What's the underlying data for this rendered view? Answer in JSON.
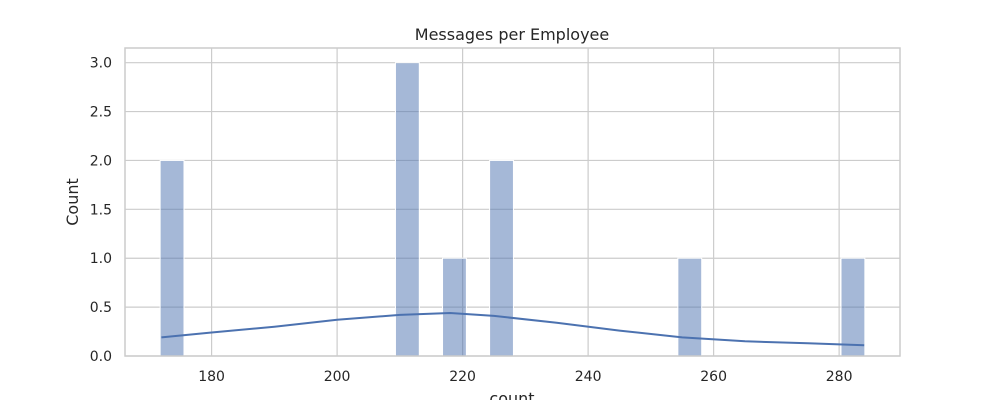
{
  "chart_data": {
    "type": "bar",
    "title": "Messages per Employee",
    "xlabel": "count",
    "ylabel": "Count",
    "xlim": [
      166.2,
      289.7
    ],
    "ylim": [
      0,
      3.15
    ],
    "xticks": [
      180,
      200,
      220,
      240,
      260,
      280
    ],
    "yticks": [
      0.0,
      0.5,
      1.0,
      1.5,
      2.0,
      2.5,
      3.0
    ],
    "ytick_labels": [
      "0.0",
      "0.5",
      "1.0",
      "1.5",
      "2.0",
      "2.5",
      "3.0"
    ],
    "grid": true,
    "bars": [
      {
        "x_start": 171.8,
        "x_end": 175.6,
        "value": 2
      },
      {
        "x_start": 209.3,
        "x_end": 213.1,
        "value": 3
      },
      {
        "x_start": 216.8,
        "x_end": 220.6,
        "value": 1
      },
      {
        "x_start": 224.3,
        "x_end": 228.1,
        "value": 2
      },
      {
        "x_start": 254.3,
        "x_end": 258.1,
        "value": 1
      },
      {
        "x_start": 280.3,
        "x_end": 284.1,
        "value": 1
      }
    ],
    "kde": {
      "x": [
        172,
        180,
        190,
        200,
        210,
        218,
        225,
        235,
        245,
        255,
        265,
        275,
        284
      ],
      "y": [
        0.19,
        0.24,
        0.3,
        0.37,
        0.42,
        0.44,
        0.41,
        0.34,
        0.26,
        0.19,
        0.15,
        0.13,
        0.11
      ]
    }
  }
}
